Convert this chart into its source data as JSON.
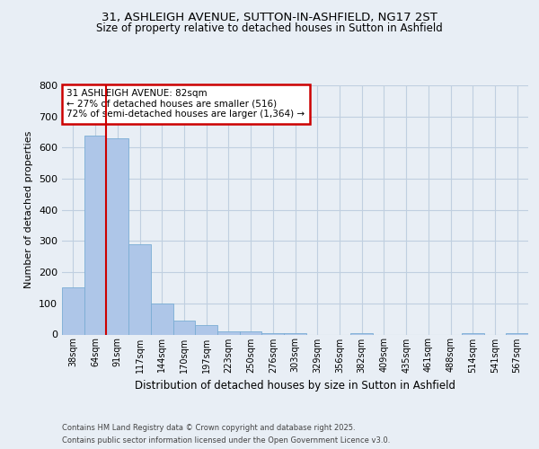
{
  "title1": "31, ASHLEIGH AVENUE, SUTTON-IN-ASHFIELD, NG17 2ST",
  "title2": "Size of property relative to detached houses in Sutton in Ashfield",
  "xlabel": "Distribution of detached houses by size in Sutton in Ashfield",
  "ylabel": "Number of detached properties",
  "footnote1": "Contains HM Land Registry data © Crown copyright and database right 2025.",
  "footnote2": "Contains public sector information licensed under the Open Government Licence v3.0.",
  "categories": [
    "38sqm",
    "64sqm",
    "91sqm",
    "117sqm",
    "144sqm",
    "170sqm",
    "197sqm",
    "223sqm",
    "250sqm",
    "276sqm",
    "303sqm",
    "329sqm",
    "356sqm",
    "382sqm",
    "409sqm",
    "435sqm",
    "461sqm",
    "488sqm",
    "514sqm",
    "541sqm",
    "567sqm"
  ],
  "values": [
    150,
    640,
    630,
    290,
    100,
    45,
    30,
    10,
    10,
    5,
    5,
    0,
    0,
    5,
    0,
    0,
    0,
    0,
    5,
    0,
    5
  ],
  "bar_color": "#aec6e8",
  "bar_edge_color": "#7aadd4",
  "vline_color": "#cc0000",
  "vline_x_index": 1.5,
  "annotation_text": "31 ASHLEIGH AVENUE: 82sqm\n← 27% of detached houses are smaller (516)\n72% of semi-detached houses are larger (1,364) →",
  "annotation_box_color": "#ffffff",
  "annotation_box_edge": "#cc0000",
  "ylim": [
    0,
    800
  ],
  "yticks": [
    0,
    100,
    200,
    300,
    400,
    500,
    600,
    700,
    800
  ],
  "fig_bg_color": "#e8eef5",
  "plot_bg_color": "#e8eef5",
  "grid_color": "#c0cfe0"
}
